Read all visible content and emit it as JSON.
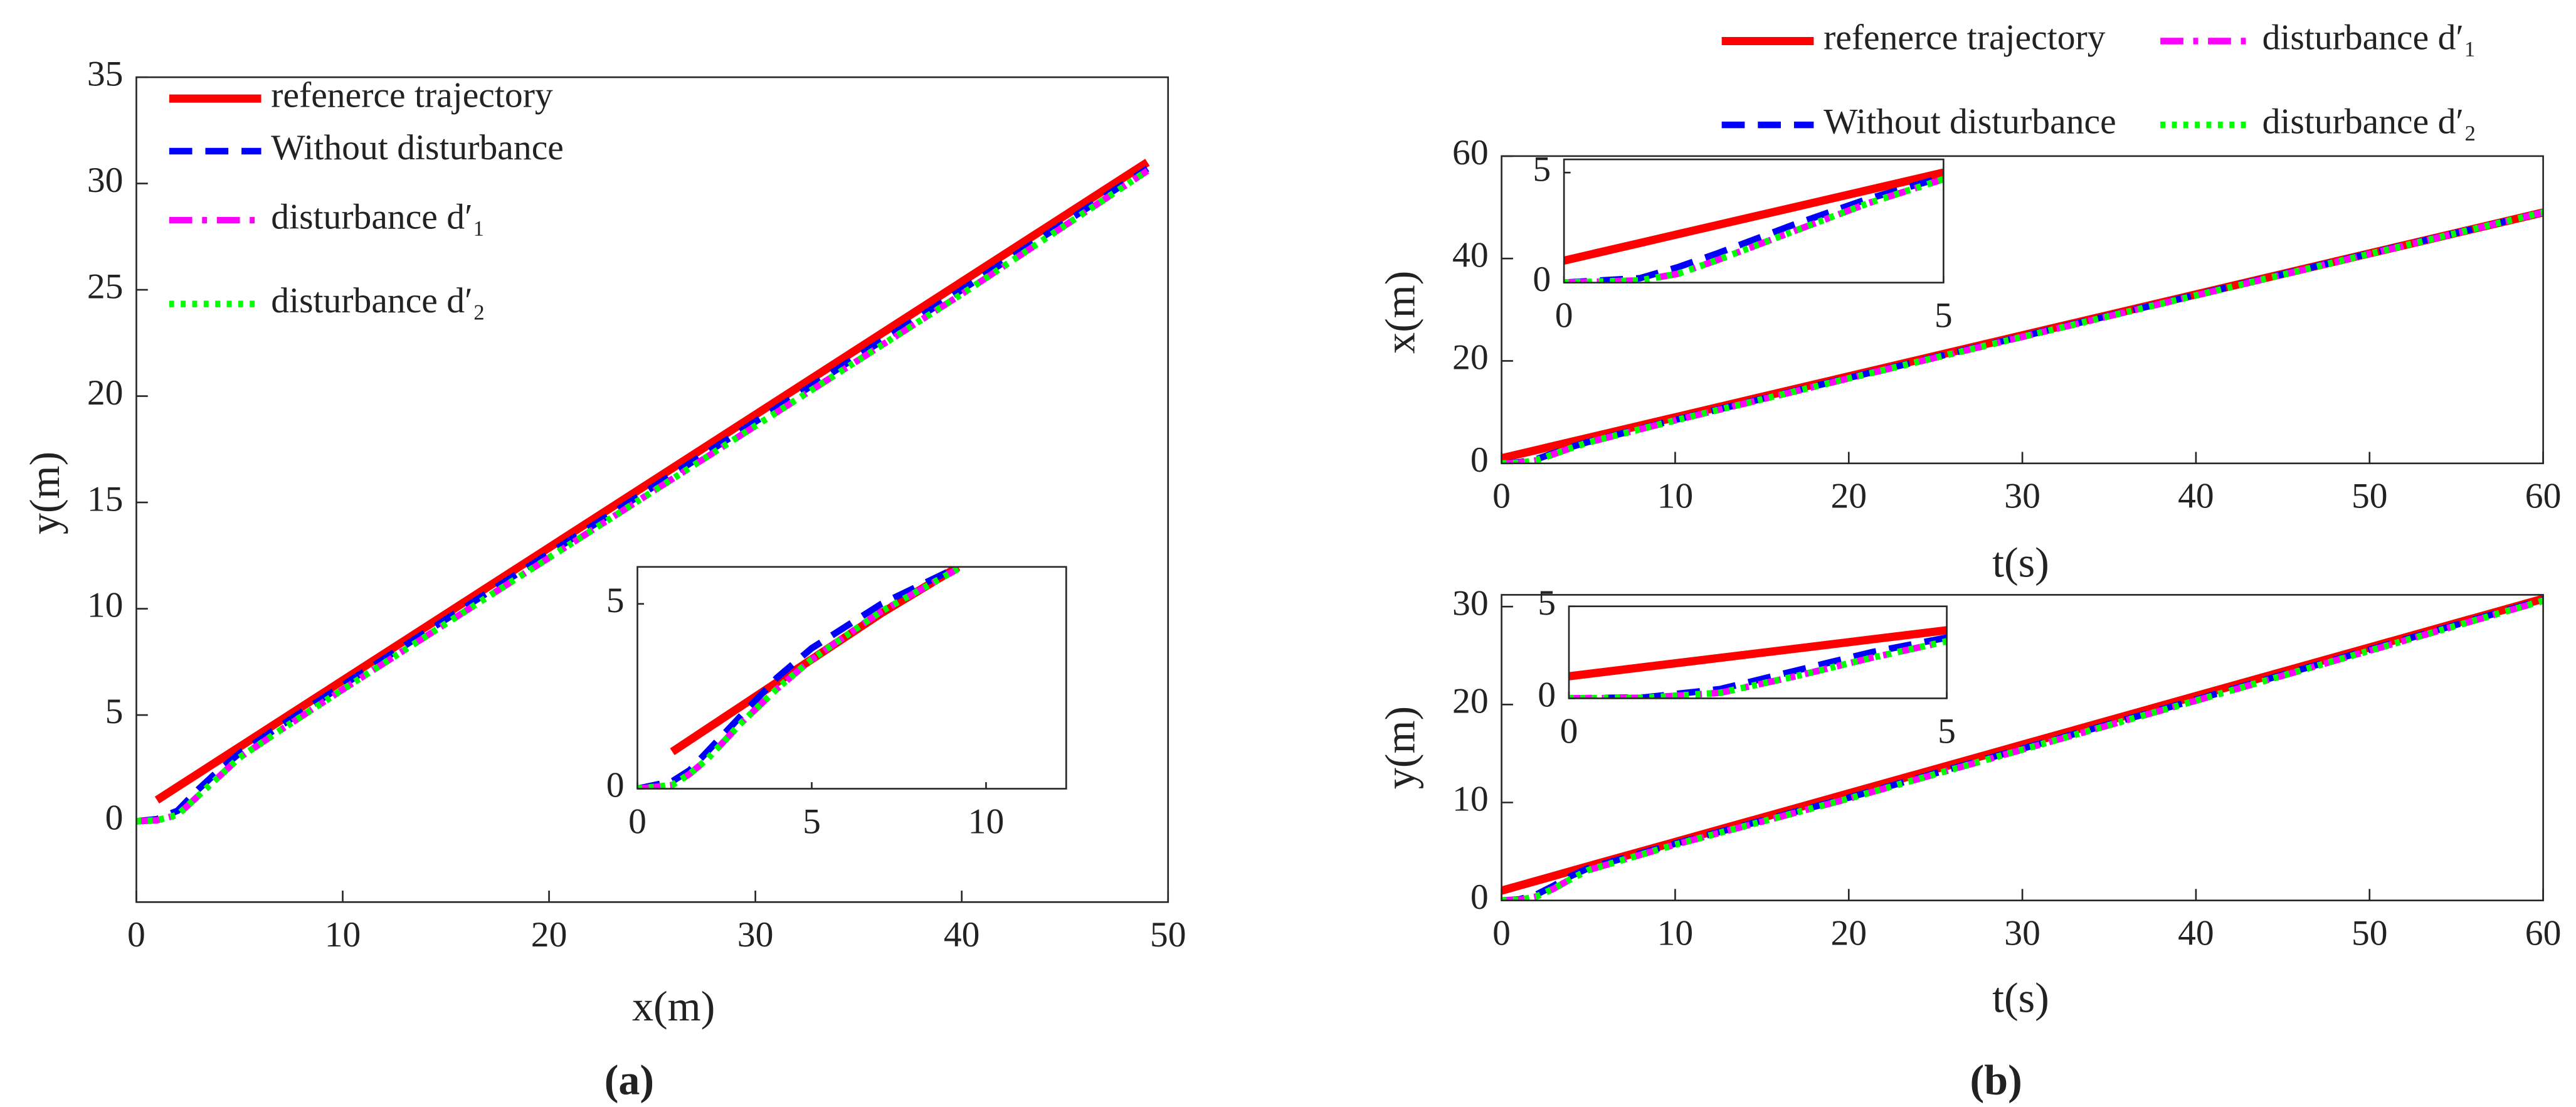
{
  "chart_data": [
    {
      "type": "line",
      "x_label": "x(m)",
      "y_label": "y(m)",
      "panel_label": "(a)",
      "legend": "upper left",
      "xlim": [
        0,
        50
      ],
      "ylim": [
        -3.8,
        35
      ],
      "xticks": [
        0,
        10,
        20,
        30,
        40,
        50
      ],
      "yticks": [
        0,
        5,
        10,
        15,
        20,
        25,
        30,
        35
      ],
      "x": [
        0,
        1,
        2,
        3,
        4,
        5,
        7,
        10,
        20,
        30,
        40,
        49
      ],
      "series": [
        {
          "name": "refenerce trajectory",
          "color": "#ff0000",
          "style": "solid",
          "values": [
            null,
            1,
            1.625,
            2.25,
            2.875,
            3.5,
            4.75,
            6.625,
            12.875,
            19.125,
            25.375,
            31
          ]
        },
        {
          "name": "Without disturbance",
          "color": "#0000ff",
          "style": "dashed",
          "values": [
            0,
            0.1,
            0.5,
            1.5,
            2.4,
            3.2,
            4.5,
            6.4,
            12.6,
            18.8,
            25,
            30.7
          ]
        },
        {
          "name": "disturbance d′₁",
          "color": "#ff00ff",
          "style": "dashdot",
          "values": [
            0,
            0.05,
            0.3,
            1.2,
            2.1,
            3,
            4.3,
            6.2,
            12.4,
            18.6,
            24.8,
            30.6
          ]
        },
        {
          "name": "disturbance d′₂",
          "color": "#00ff00",
          "style": "dotted",
          "values": [
            0,
            0.05,
            0.3,
            1.2,
            2.1,
            3,
            4.3,
            6.2,
            12.4,
            18.6,
            24.8,
            30.6
          ]
        }
      ]
    },
    {
      "type": "line",
      "xlim": [
        0,
        12.3
      ],
      "ylim": [
        0,
        6
      ],
      "xticks": [
        0,
        5,
        10
      ],
      "yticks": [
        0,
        5
      ],
      "x": [
        0,
        1,
        1.5,
        2,
        3,
        4,
        5,
        7,
        9.2
      ],
      "series": [
        {
          "color": "#ff0000",
          "style": "solid",
          "values": [
            null,
            1,
            1.3125,
            1.625,
            2.25,
            2.875,
            3.5,
            4.75,
            6
          ]
        },
        {
          "color": "#0000ff",
          "style": "dashed",
          "values": [
            0,
            0.2,
            0.5,
            1,
            2,
            3,
            3.8,
            5,
            6
          ]
        },
        {
          "color": "#ff00ff",
          "style": "dashdot",
          "values": [
            0,
            0.1,
            0.4,
            0.8,
            1.8,
            2.7,
            3.5,
            4.8,
            5.95
          ]
        },
        {
          "color": "#00ff00",
          "style": "dotted",
          "values": [
            0,
            0.1,
            0.4,
            0.8,
            1.8,
            2.7,
            3.5,
            4.8,
            5.95
          ]
        }
      ]
    },
    {
      "type": "line",
      "x_label": "t(s)",
      "y_label": "x(m)",
      "panel_label": "(b)",
      "legend": "top",
      "xlim": [
        0,
        60
      ],
      "ylim": [
        0,
        60
      ],
      "xticks": [
        0,
        10,
        20,
        30,
        40,
        50,
        60
      ],
      "yticks": [
        0,
        20,
        40,
        60
      ],
      "x": [
        0,
        1,
        2,
        3,
        4,
        5,
        10,
        20,
        30,
        40,
        50,
        60
      ],
      "series": [
        {
          "name": "refenerce trajectory",
          "color": "#ff0000",
          "style": "solid",
          "values": [
            1,
            1.8,
            2.6,
            3.4,
            4.2,
            5,
            9,
            17,
            25,
            33,
            41,
            49
          ]
        },
        {
          "name": "Without disturbance",
          "color": "#0000ff",
          "style": "dashed",
          "values": [
            0,
            0.2,
            0.8,
            2,
            3.2,
            4.2,
            8.5,
            16.7,
            24.8,
            32.9,
            41,
            49
          ]
        },
        {
          "name": "disturbance d′₁",
          "color": "#ff00ff",
          "style": "dashdot",
          "values": [
            0,
            0.1,
            0.6,
            1.8,
            3,
            4.1,
            8.4,
            16.6,
            24.7,
            32.8,
            40.9,
            49
          ]
        },
        {
          "name": "disturbance d′₂",
          "color": "#00ff00",
          "style": "dotted",
          "values": [
            0,
            0.1,
            0.6,
            1.8,
            3,
            4.1,
            8.4,
            16.6,
            24.7,
            32.8,
            40.9,
            49
          ]
        }
      ]
    },
    {
      "type": "line",
      "xlim": [
        0,
        5
      ],
      "ylim": [
        0,
        5.6
      ],
      "xticks": [
        0,
        5
      ],
      "yticks": [
        0,
        5
      ],
      "x": [
        0,
        1,
        1.5,
        2,
        3,
        4,
        5
      ],
      "series": [
        {
          "color": "#ff0000",
          "style": "solid",
          "values": [
            1,
            1.8,
            2.2,
            2.6,
            3.4,
            4.2,
            5
          ]
        },
        {
          "color": "#0000ff",
          "style": "dashed",
          "values": [
            0,
            0.2,
            0.7,
            1.3,
            2.6,
            3.8,
            4.8
          ]
        },
        {
          "color": "#ff00ff",
          "style": "dashdot",
          "values": [
            0,
            0.1,
            0.4,
            1,
            2.3,
            3.6,
            4.7
          ]
        },
        {
          "color": "#00ff00",
          "style": "dotted",
          "values": [
            0,
            0.1,
            0.4,
            1,
            2.3,
            3.6,
            4.7
          ]
        }
      ]
    },
    {
      "type": "line",
      "x_label": "t(s)",
      "y_label": "y(m)",
      "xlim": [
        0,
        60
      ],
      "ylim": [
        0,
        31.2
      ],
      "xticks": [
        0,
        10,
        20,
        30,
        40,
        50,
        60
      ],
      "yticks": [
        0,
        10,
        20,
        30
      ],
      "x": [
        0,
        1,
        2,
        3,
        4,
        5,
        10,
        20,
        30,
        40,
        50,
        60
      ],
      "series": [
        {
          "color": "#ff0000",
          "style": "solid",
          "values": [
            1,
            1.5,
            2,
            2.5,
            3,
            3.5,
            5.97,
            10.93,
            15.9,
            20.87,
            25.83,
            30.8
          ]
        },
        {
          "color": "#0000ff",
          "style": "dashed",
          "values": [
            0,
            0.1,
            0.6,
            1.5,
            2.5,
            3.3,
            5.8,
            10.5,
            15.5,
            20.5,
            25.6,
            30.7
          ]
        },
        {
          "color": "#ff00ff",
          "style": "dashdot",
          "values": [
            0,
            0.05,
            0.4,
            1.2,
            2.2,
            3.1,
            5.7,
            10.4,
            15.4,
            20.4,
            25.5,
            30.6
          ]
        },
        {
          "color": "#00ff00",
          "style": "dotted",
          "values": [
            0,
            0.05,
            0.4,
            1.2,
            2.2,
            3.1,
            5.7,
            10.4,
            15.4,
            20.4,
            25.5,
            30.6
          ]
        }
      ]
    },
    {
      "type": "line",
      "xlim": [
        0,
        5
      ],
      "ylim": [
        0,
        5
      ],
      "xticks": [
        0,
        5
      ],
      "yticks": [
        0,
        5
      ],
      "x": [
        0,
        1,
        2,
        3,
        4,
        5
      ],
      "series": [
        {
          "color": "#ff0000",
          "style": "solid",
          "values": [
            1.2,
            1.7,
            2.2,
            2.7,
            3.2,
            3.7
          ]
        },
        {
          "color": "#0000ff",
          "style": "dashed",
          "values": [
            0,
            0.05,
            0.5,
            1.5,
            2.5,
            3.3
          ]
        },
        {
          "color": "#ff00ff",
          "style": "dashdot",
          "values": [
            0,
            0.03,
            0.3,
            1.2,
            2.2,
            3.1
          ]
        },
        {
          "color": "#00ff00",
          "style": "dotted",
          "values": [
            0,
            0.03,
            0.3,
            1.2,
            2.2,
            3.1
          ]
        }
      ]
    }
  ]
}
